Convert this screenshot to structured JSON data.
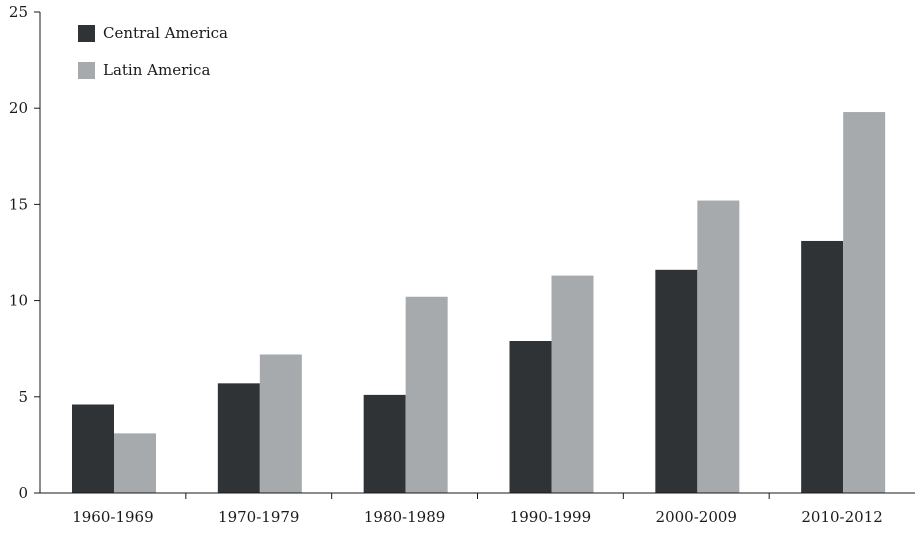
{
  "chart_data": {
    "type": "bar",
    "title": "",
    "xlabel": "",
    "ylabel": "",
    "categories": [
      "1960-1969",
      "1970-1979",
      "1980-1989",
      "1990-1999",
      "2000-2009",
      "2010-2012"
    ],
    "series": [
      {
        "name": "Central America",
        "color": "#2f3336",
        "values": [
          4.6,
          5.7,
          5.1,
          7.9,
          11.6,
          13.1
        ]
      },
      {
        "name": "Latin America",
        "color": "#a7aaad",
        "values": [
          3.1,
          7.2,
          10.2,
          11.3,
          15.2,
          19.8
        ]
      }
    ],
    "ylim": [
      0,
      25
    ],
    "yticks": [
      0,
      5,
      10,
      15,
      20,
      25
    ],
    "ytick_labels": [
      "0",
      "5",
      "10",
      "15",
      "20",
      "25"
    ],
    "grid": false,
    "legend_position": "top-left"
  }
}
